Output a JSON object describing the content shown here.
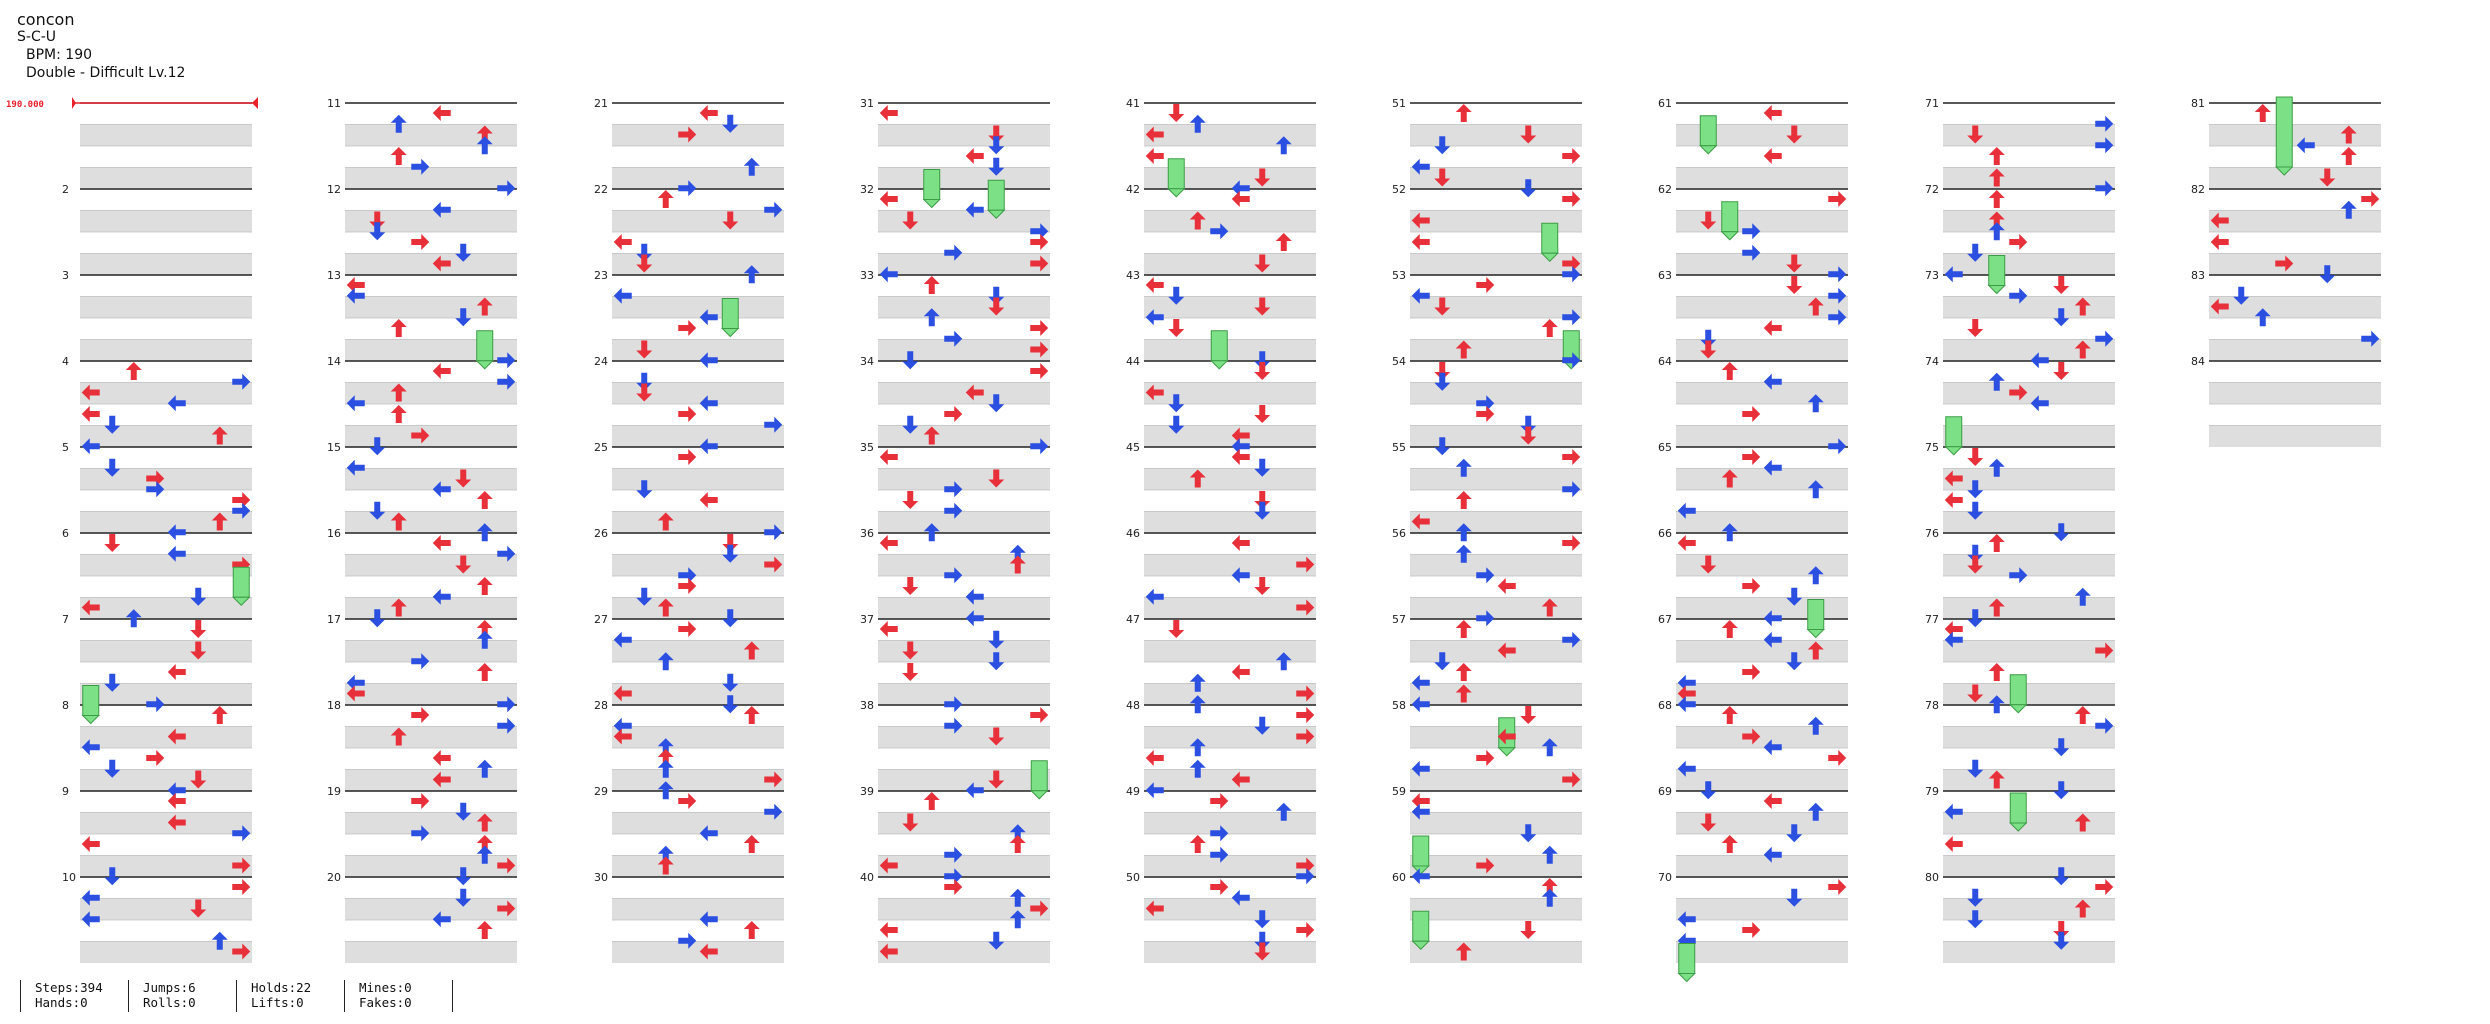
{
  "song": {
    "title": "concon",
    "artist": "S-C-U",
    "bpm_line": "BPM: 190",
    "difficulty_line": "Double - Difficult Lv.12"
  },
  "bpm_marker": "190.000",
  "measure_labels": [
    "",
    "2",
    "3",
    "4",
    "5",
    "6",
    "7",
    "8",
    "9",
    "10",
    "11",
    "12",
    "13",
    "14",
    "15",
    "16",
    "17",
    "18",
    "19",
    "20",
    "21",
    "22",
    "23",
    "24",
    "25",
    "26",
    "27",
    "28",
    "29",
    "30",
    "31",
    "32",
    "33",
    "34",
    "35",
    "36",
    "37",
    "38",
    "39",
    "40",
    "41",
    "42",
    "43",
    "44",
    "45",
    "46",
    "47",
    "48",
    "49",
    "50",
    "51",
    "52",
    "53",
    "54",
    "55",
    "56",
    "57",
    "58",
    "59",
    "60",
    "61",
    "62",
    "63",
    "64",
    "65",
    "66",
    "67",
    "68",
    "69",
    "70",
    "71",
    "72",
    "73",
    "74",
    "75",
    "76",
    "77",
    "78",
    "79",
    "80",
    "81",
    "82",
    "83",
    "84"
  ],
  "stats": {
    "steps": "Steps:394",
    "hands": "Hands:0",
    "jumps": "Jumps:6",
    "rolls": "Rolls:0",
    "holds": "Holds:22",
    "lifts": "Lifts:0",
    "mines": "Mines:0",
    "fakes": "Fakes:0"
  },
  "colors": {
    "red_note": "#e8303a",
    "blue_note": "#2b4fe0",
    "hold": "#6fe07a",
    "mine": "#f2d62a",
    "stripe": "#dedede"
  }
}
